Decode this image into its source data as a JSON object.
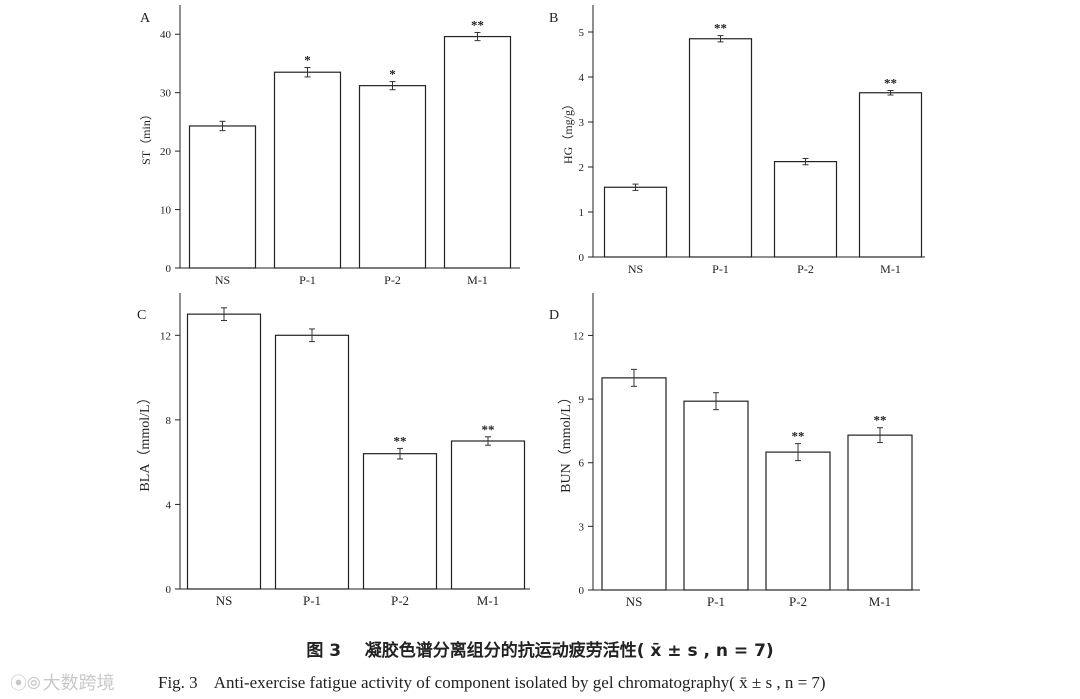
{
  "chart_data": [
    {
      "panel": "A",
      "type": "bar",
      "ylabel": "ST（min）",
      "categories": [
        "NS",
        "P-1",
        "P-2",
        "M-1"
      ],
      "values": [
        24.3,
        33.5,
        31.2,
        39.6
      ],
      "errors": [
        0.8,
        0.8,
        0.7,
        0.7
      ],
      "annotations": [
        "",
        "*",
        "*",
        "**"
      ],
      "ylim": [
        0,
        45
      ],
      "yticks": [
        0,
        10,
        20,
        30,
        40
      ]
    },
    {
      "panel": "B",
      "type": "bar",
      "ylabel": "HG（mg/g）",
      "categories": [
        "NS",
        "P-1",
        "P-2",
        "M-1"
      ],
      "values": [
        1.55,
        4.85,
        2.12,
        3.65
      ],
      "errors": [
        0.07,
        0.07,
        0.07,
        0.05
      ],
      "annotations": [
        "",
        "**",
        "",
        "**"
      ],
      "ylim": [
        0,
        5.6
      ],
      "yticks": [
        0,
        1,
        2,
        3,
        4,
        5
      ]
    },
    {
      "panel": "C",
      "type": "bar",
      "ylabel": "BLA（mmol/L）",
      "categories": [
        "NS",
        "P-1",
        "P-2",
        "M-1"
      ],
      "values": [
        13.0,
        12.0,
        6.4,
        7.0
      ],
      "errors": [
        0.3,
        0.3,
        0.25,
        0.2
      ],
      "annotations": [
        "",
        "",
        "**",
        "**"
      ],
      "ylim": [
        0,
        14
      ],
      "yticks": [
        0,
        4,
        8,
        12
      ]
    },
    {
      "panel": "D",
      "type": "bar",
      "ylabel": "BUN（mmol/L）",
      "categories": [
        "NS",
        "P-1",
        "P-2",
        "M-1"
      ],
      "values": [
        10.0,
        8.9,
        6.5,
        7.3
      ],
      "errors": [
        0.4,
        0.4,
        0.4,
        0.35
      ],
      "annotations": [
        "",
        "",
        "**",
        "**"
      ],
      "ylim": [
        0,
        14
      ],
      "yticks": [
        0,
        3,
        6,
        9,
        12
      ]
    }
  ],
  "caption": {
    "cn": "图 3    凝胶色谱分离组分的抗运动疲劳活性( x̄ ± s , n = 7)",
    "en": "Fig. 3    Anti-exercise fatigue activity of component isolated by gel chromatography( x̄ ± s , n = 7)"
  },
  "watermark": {
    "text": "大数跨境",
    "logo": "icon"
  }
}
